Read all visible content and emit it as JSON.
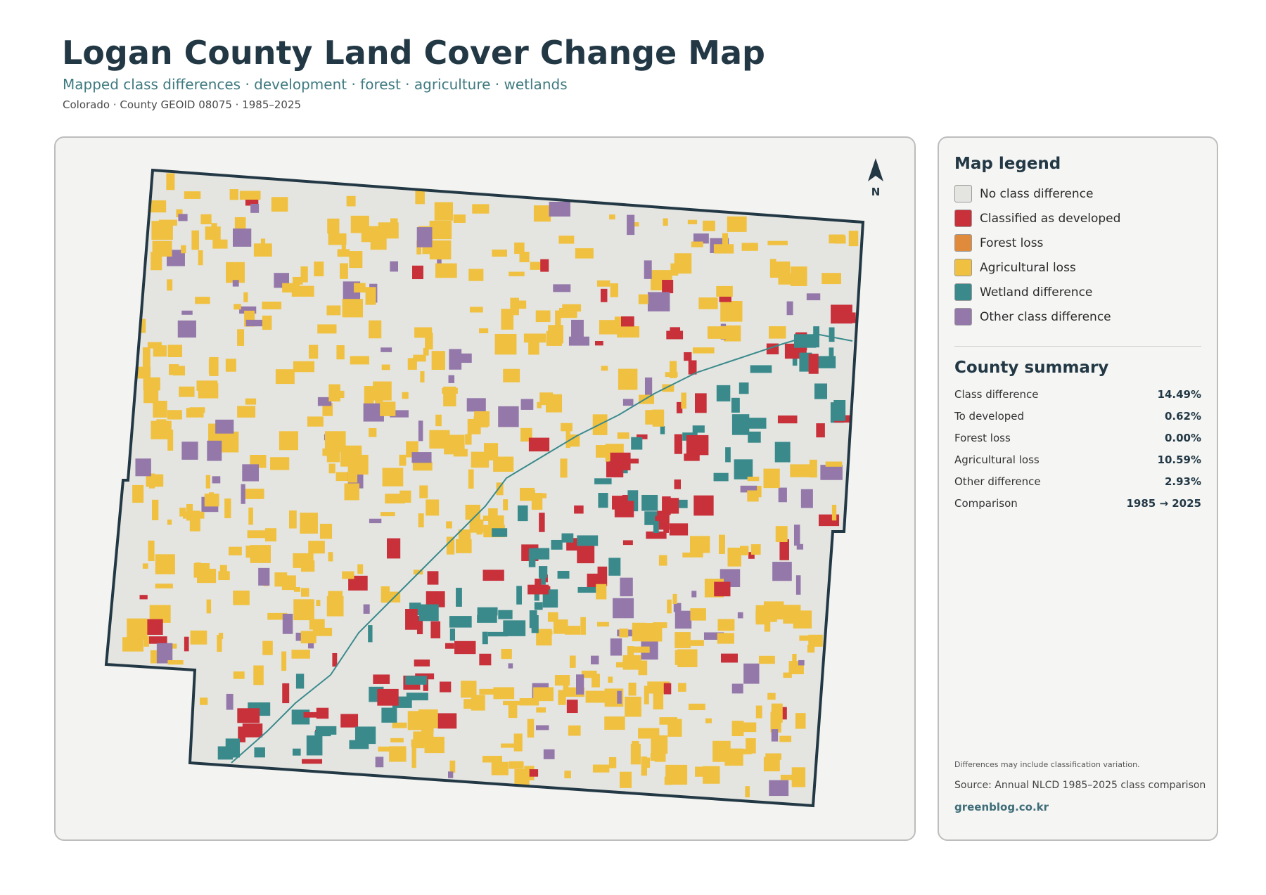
{
  "header": {
    "title": "Logan County Land Cover Change Map",
    "subtitle": "Mapped class differences · development · forest · agriculture · wetlands",
    "meta": "Colorado · County GEOID 08075 · 1985–2025"
  },
  "map": {
    "north": "N"
  },
  "legend": {
    "title": "Map legend",
    "items": [
      {
        "label": "No class difference",
        "color": "#e4e5e1"
      },
      {
        "label": "Classified as developed",
        "color": "#c8303a"
      },
      {
        "label": "Forest loss",
        "color": "#e08a3c"
      },
      {
        "label": "Agricultural loss",
        "color": "#f0c040"
      },
      {
        "label": "Wetland difference",
        "color": "#3a8a8c"
      },
      {
        "label": "Other class difference",
        "color": "#9478aa"
      }
    ]
  },
  "summary": {
    "title": "County summary",
    "rows": [
      [
        "Class difference",
        "14.49%"
      ],
      [
        "To developed",
        "0.62%"
      ],
      [
        "Forest loss",
        "0.00%"
      ],
      [
        "Agricultural loss",
        "10.59%"
      ],
      [
        "Other difference",
        "2.93%"
      ],
      [
        "Comparison",
        "1985 → 2025"
      ]
    ]
  },
  "footer": {
    "note": "Differences may include classification variation.",
    "source": "Source: Annual NLCD 1985–2025 class comparison",
    "site": "greenblog.co.kr"
  }
}
